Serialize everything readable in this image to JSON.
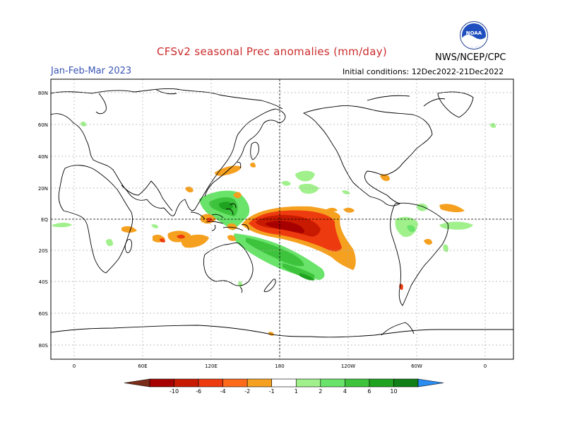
{
  "header": {
    "title": "CFSv2 seasonal Prec anomalies (mm/day)",
    "season": "Jan-Feb-Mar 2023",
    "initial_conditions": "Initial conditions: 12Dec2022-21Dec2022",
    "agency": "NWS/NCEP/CPC",
    "logo_text": "NOAA"
  },
  "map": {
    "lat_labels": [
      "80N",
      "60N",
      "40N",
      "20N",
      "EQ",
      "20S",
      "40S",
      "60S",
      "80S"
    ],
    "lon_labels": [
      "0",
      "60E",
      "120E",
      "180",
      "120W",
      "60W",
      "0"
    ]
  },
  "colorbar": {
    "labels": [
      "-10",
      "-6",
      "-4",
      "-2",
      "-1",
      "1",
      "2",
      "4",
      "6",
      "10"
    ],
    "colors": [
      "#7a2d18",
      "#a60000",
      "#c81a00",
      "#ee3a0f",
      "#ff6a1a",
      "#f5a01f",
      "#ffffff",
      "#a0f08c",
      "#69e36a",
      "#3ec43c",
      "#1fa21f",
      "#0f7f16",
      "#2a8cf0"
    ]
  },
  "colors": {
    "title": "#cc2b2b",
    "season": "#3a55b4",
    "frame": "#000000"
  }
}
